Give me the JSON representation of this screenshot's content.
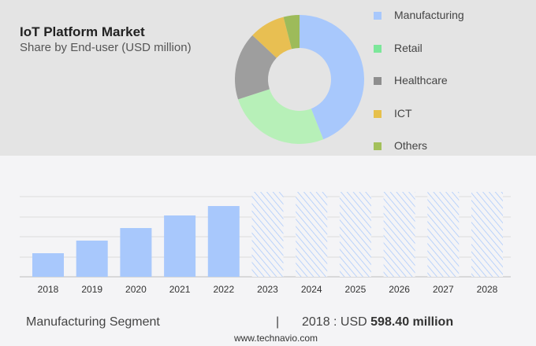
{
  "chart_data": [
    {
      "type": "pie",
      "title": "IoT Platform Market",
      "subtitle": "Share by End-user (USD million)",
      "donut": true,
      "categories": [
        "Manufacturing",
        "Retail",
        "Healthcare",
        "ICT",
        "Others"
      ],
      "values": [
        44,
        26,
        17,
        9,
        4
      ],
      "colors": [
        "#a8c8fc",
        "#b7f0b8",
        "#9e9e9e",
        "#e8bf52",
        "#9dbb5a"
      ],
      "legend_colors": [
        "#a8c8fc",
        "#7ce79a",
        "#8e8e8e",
        "#e6c04c",
        "#a3c05a"
      ],
      "legend_position": "right"
    },
    {
      "type": "bar",
      "categories": [
        "2018",
        "2019",
        "2020",
        "2021",
        "2022",
        "2023",
        "2024",
        "2025",
        "2026",
        "2027",
        "2028"
      ],
      "values": [
        598.4,
        918,
        1237,
        1556,
        1795,
        null,
        null,
        null,
        null,
        null,
        null
      ],
      "forecast": [
        "2023",
        "2024",
        "2025",
        "2026",
        "2027",
        "2028"
      ],
      "color": "#a8c8fc",
      "grid": true
    }
  ],
  "footer": {
    "segment": "Manufacturing Segment",
    "separator": "|",
    "year_label": "2018 : USD ",
    "value": "598.40 million",
    "website": "www.technavio.com"
  }
}
